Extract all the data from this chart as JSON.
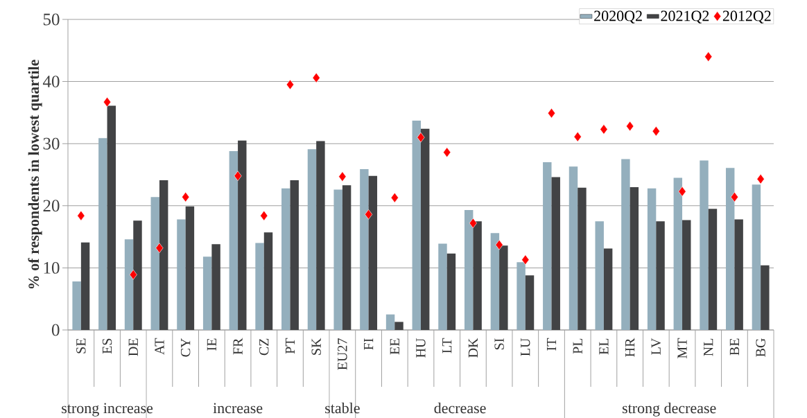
{
  "chart_data": {
    "type": "bar",
    "ylabel": "% of respondents in lowest quartile",
    "categories": [
      "SE",
      "ES",
      "DE",
      "AT",
      "CY",
      "IE",
      "FR",
      "CZ",
      "PT",
      "SK",
      "EU27",
      "FI",
      "EE",
      "HU",
      "LT",
      "DK",
      "SI",
      "LU",
      "IT",
      "PL",
      "EL",
      "HR",
      "LV",
      "MT",
      "NL",
      "BE",
      "BG"
    ],
    "series": [
      {
        "name": "2020Q2",
        "color": "#94afbd",
        "values": [
          7.8,
          30.9,
          14.6,
          21.4,
          17.8,
          11.8,
          28.8,
          14.0,
          22.8,
          29.1,
          22.6,
          25.9,
          2.5,
          33.7,
          13.9,
          19.3,
          15.6,
          10.9,
          27.0,
          26.3,
          17.5,
          27.5,
          22.8,
          24.5,
          27.3,
          26.1,
          23.4
        ]
      },
      {
        "name": "2021Q2",
        "color": "#424345",
        "values": [
          14.1,
          36.1,
          17.6,
          24.1,
          19.9,
          13.8,
          30.5,
          15.7,
          24.1,
          30.4,
          23.3,
          24.8,
          1.3,
          32.4,
          12.3,
          17.5,
          13.6,
          8.8,
          24.6,
          22.9,
          13.1,
          23.0,
          17.5,
          17.7,
          19.5,
          17.8,
          10.4
        ]
      },
      {
        "name": "2012Q2",
        "type": "scatter",
        "color": "#ff0000",
        "marker": "diamond",
        "values": [
          18.4,
          36.7,
          8.9,
          13.2,
          21.4,
          null,
          24.8,
          18.4,
          39.5,
          40.6,
          24.7,
          18.6,
          21.3,
          31.0,
          28.6,
          17.2,
          13.7,
          11.3,
          34.9,
          31.1,
          32.3,
          32.8,
          32.0,
          22.3,
          44.0,
          21.4,
          24.3
        ]
      }
    ],
    "ylim": [
      0,
      50
    ],
    "yticks": [
      0,
      10,
      20,
      30,
      40,
      50
    ],
    "grid": "y",
    "legend": "top right",
    "annotations": [
      "strong increase",
      "increase",
      "stable",
      "decrease",
      "strong decrease"
    ]
  }
}
